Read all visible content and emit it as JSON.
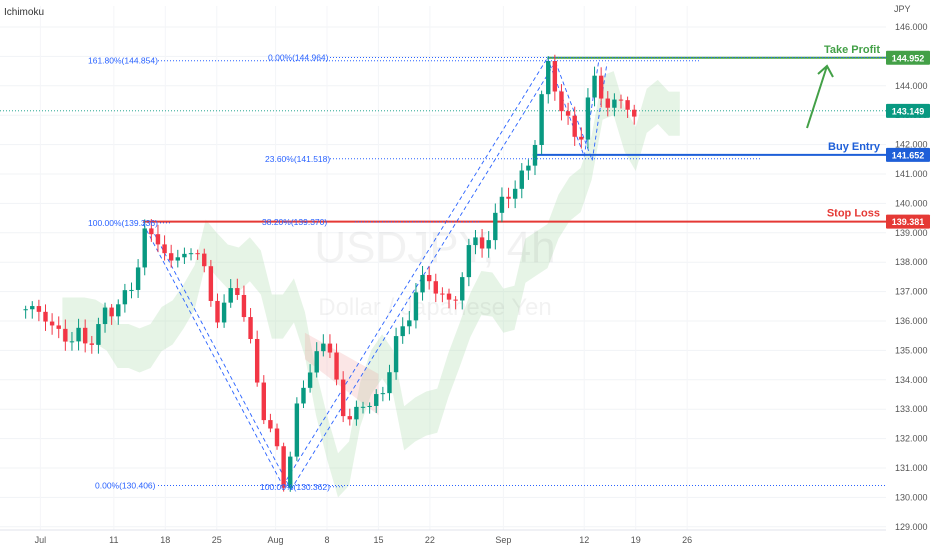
{
  "header": {
    "indicator": "Ichimoku",
    "currency": "JPY"
  },
  "watermark": {
    "symbol": "USDJPY, 4h",
    "description": "Dollar / Japanese Yen"
  },
  "chart_data": {
    "type": "candlestick",
    "y_axis": {
      "range": [
        129.0,
        146.0
      ],
      "ticks": [
        "129.000",
        "130.000",
        "131.000",
        "132.000",
        "133.000",
        "134.000",
        "135.000",
        "136.000",
        "137.000",
        "138.000",
        "139.000",
        "140.000",
        "141.000",
        "142.000",
        "143.000",
        "144.000",
        "145.000",
        "146.000"
      ]
    },
    "x_axis": {
      "ticks": [
        "Jul",
        "11",
        "18",
        "25",
        "Aug",
        "8",
        "15",
        "22",
        "Sep",
        "12",
        "19",
        "26"
      ]
    },
    "price_tags": [
      {
        "label": "144.952",
        "value": 144.952,
        "color": "#43a047"
      },
      {
        "label": "143.149",
        "value": 143.149,
        "color": "#089981"
      },
      {
        "label": "141.652",
        "value": 141.652,
        "color": "#1e5fd8"
      },
      {
        "label": "139.381",
        "value": 139.381,
        "color": "#e53935"
      }
    ],
    "levels": [
      {
        "name": "Take Profit",
        "value": 144.952,
        "color": "#43a047"
      },
      {
        "name": "Buy Entry",
        "value": 141.652,
        "color": "#1e5fd8"
      },
      {
        "name": "Stop Loss",
        "value": 139.381,
        "color": "#e53935"
      }
    ],
    "fib_labels": [
      {
        "text": "161.80%(144.854)",
        "value": 144.854
      },
      {
        "text": "0.00%(144.964)",
        "value": 144.964
      },
      {
        "text": "23.60%(141.518)",
        "value": 141.518
      },
      {
        "text": "100.00%(139.336)",
        "value": 139.336
      },
      {
        "text": "38.20%(139.370)",
        "value": 139.37
      },
      {
        "text": "0.00%(130.406)",
        "value": 130.406
      },
      {
        "text": "100.00%(130.362)",
        "value": 130.362
      }
    ],
    "pattern_points": [
      {
        "x": "Jul 14",
        "y": 139.3
      },
      {
        "x": "Aug 2",
        "y": 130.4
      },
      {
        "x": "Sep 7",
        "y": 144.95
      },
      {
        "x": "Sep 12",
        "y": 141.6
      },
      {
        "x": "Sep 14",
        "y": 144.9
      }
    ],
    "price_path": [
      [
        "Jun 29",
        136.4
      ],
      [
        "Jul 1",
        136.1
      ],
      [
        "Jul 3",
        135.3
      ],
      [
        "Jul 5",
        135.7
      ],
      [
        "Jul 6",
        135.0
      ],
      [
        "Jul 7",
        135.5
      ],
      [
        "Jul 8",
        136.0
      ],
      [
        "Jul 10",
        136.3
      ],
      [
        "Jul 11",
        137.2
      ],
      [
        "Jul 12",
        136.5
      ],
      [
        "Jul 13",
        137.5
      ],
      [
        "Jul 14",
        139.3
      ],
      [
        "Jul 15",
        138.8
      ],
      [
        "Jul 17",
        138.4
      ],
      [
        "Jul 18",
        138.0
      ],
      [
        "Jul 19",
        138.1
      ],
      [
        "Jul 20",
        138.3
      ],
      [
        "Jul 21",
        138.6
      ],
      [
        "Jul 22",
        138.0
      ],
      [
        "Jul 23",
        136.8
      ],
      [
        "Jul 24",
        136.2
      ],
      [
        "Jul 25",
        136.5
      ],
      [
        "Jul 26",
        136.9
      ],
      [
        "Jul 27",
        137.2
      ],
      [
        "Jul 28",
        135.9
      ],
      [
        "Jul 29",
        134.5
      ],
      [
        "Jul 30",
        133.3
      ],
      [
        "Jul 31",
        132.4
      ],
      [
        "Aug 1",
        131.8
      ],
      [
        "Aug 2",
        130.4
      ],
      [
        "Aug 3",
        131.5
      ],
      [
        "Aug 4",
        133.2
      ],
      [
        "Aug 5",
        133.8
      ],
      [
        "Aug 6",
        134.6
      ],
      [
        "Aug 7",
        135.3
      ],
      [
        "Aug 8",
        135.0
      ],
      [
        "Aug 9",
        134.6
      ],
      [
        "Aug 10",
        133.0
      ],
      [
        "Aug 11",
        132.4
      ],
      [
        "Aug 12",
        133.0
      ],
      [
        "Aug 13",
        133.4
      ],
      [
        "Aug 14",
        133.0
      ],
      [
        "Aug 15",
        133.3
      ],
      [
        "Aug 16",
        134.0
      ],
      [
        "Aug 17",
        135.0
      ],
      [
        "Aug 18",
        135.5
      ],
      [
        "Aug 19",
        136.2
      ],
      [
        "Aug 20",
        136.9
      ],
      [
        "Aug 21",
        137.3
      ],
      [
        "Aug 22",
        137.5
      ],
      [
        "Aug 23",
        137.0
      ],
      [
        "Aug 24",
        136.7
      ],
      [
        "Aug 25",
        136.6
      ],
      [
        "Aug 26",
        137.0
      ],
      [
        "Aug 27",
        138.4
      ],
      [
        "Aug 28",
        138.8
      ],
      [
        "Aug 29",
        138.5
      ],
      [
        "Aug 30",
        138.9
      ],
      [
        "Aug 31",
        139.6
      ],
      [
        "Sep 1",
        140.2
      ],
      [
        "Sep 2",
        140.5
      ],
      [
        "Sep 3",
        140.6
      ],
      [
        "Sep 4",
        141.0
      ],
      [
        "Sep 5",
        141.9
      ],
      [
        "Sep 6",
        143.2
      ],
      [
        "Sep 7",
        144.7
      ],
      [
        "Sep 8",
        144.1
      ],
      [
        "Sep 9",
        143.1
      ],
      [
        "Sep 10",
        142.6
      ],
      [
        "Sep 11",
        142.2
      ],
      [
        "Sep 12",
        142.5
      ],
      [
        "Sep 13",
        144.5
      ],
      [
        "Sep 14",
        143.8
      ],
      [
        "Sep 15",
        143.3
      ],
      [
        "Sep 16",
        143.5
      ],
      [
        "Sep 17",
        143.4
      ],
      [
        "Sep 18",
        143.2
      ],
      [
        "Sep 19",
        143.1
      ]
    ]
  }
}
